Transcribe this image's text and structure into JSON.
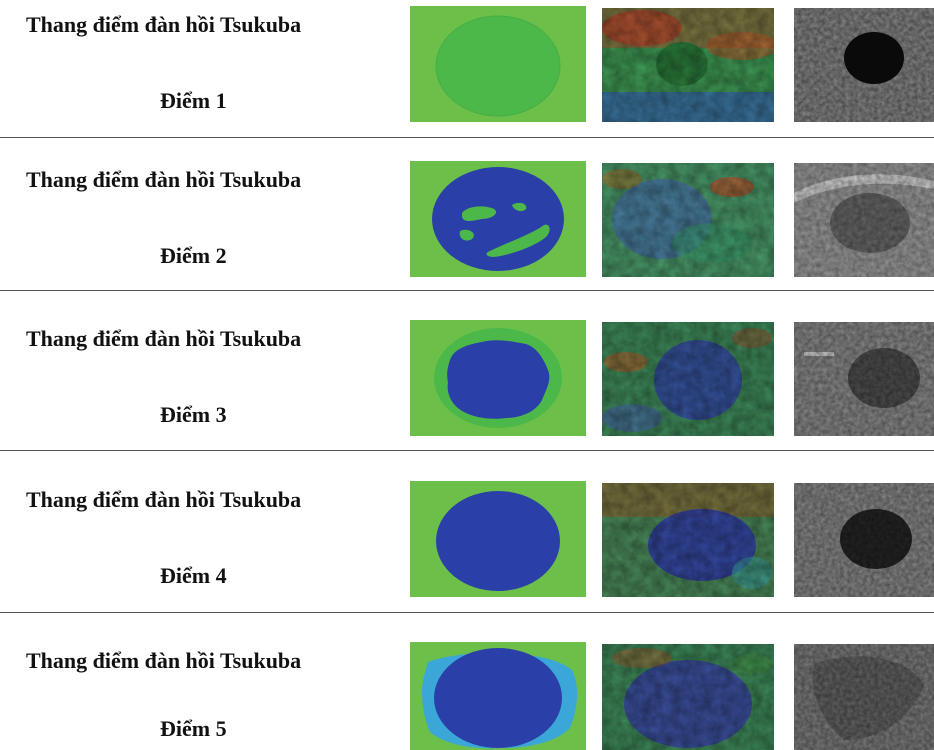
{
  "colors": {
    "schema_green": "#6cc04a",
    "inner_green": "#4cb84a",
    "hard_blue": "#2b3fa8",
    "intermediate_cyan": "#3aa7d8",
    "divider": "#555555"
  },
  "rows": [
    {
      "title": "Thang điểm đàn hồi Tsukuba",
      "score": "Điểm 1",
      "pattern": "all-green-soft",
      "blue_fraction": 0.0
    },
    {
      "title": "Thang điểm đàn hồi Tsukuba",
      "score": "Điểm 2",
      "pattern": "mosaic-blue-green",
      "blue_fraction": 0.6
    },
    {
      "title": "Thang điểm đàn hồi Tsukuba",
      "score": "Điểm 3",
      "pattern": "blue-center-green-rim",
      "blue_fraction": 0.85
    },
    {
      "title": "Thang điểm đàn hồi Tsukuba",
      "score": "Điểm 4",
      "pattern": "all-blue-lesion",
      "blue_fraction": 1.0
    },
    {
      "title": "Thang điểm đàn hồi Tsukuba",
      "score": "Điểm 5",
      "pattern": "blue-lesion-and-surrounding",
      "blue_fraction": 1.0
    }
  ]
}
